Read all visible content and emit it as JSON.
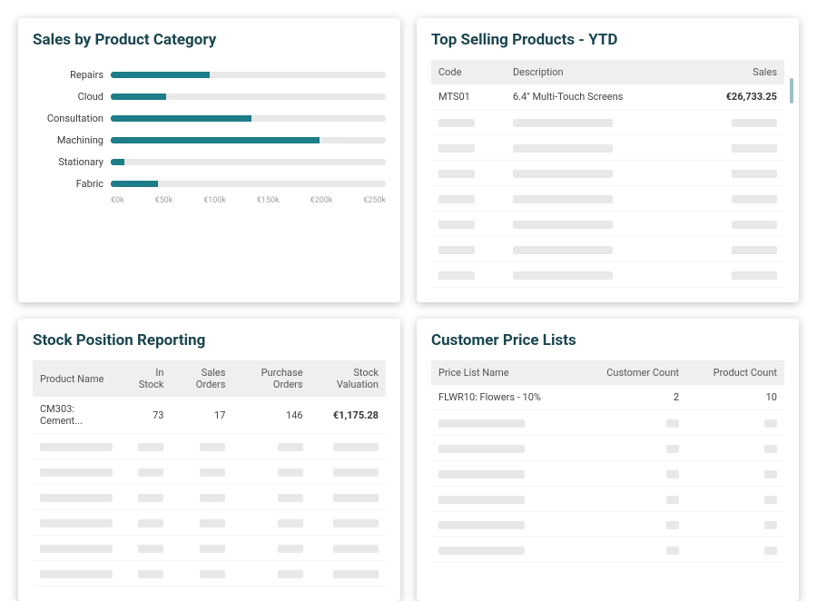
{
  "colors": {
    "title": "#1a4550",
    "bar_fill": "#1d7d89",
    "bar_track": "#e8e8e8",
    "skeleton": "#e8e8e8",
    "header_bg": "#efefef",
    "scroll": "#9dbfc4"
  },
  "chart_card": {
    "title": "Sales by Product Category",
    "type": "bar-horizontal",
    "max": 250,
    "categories": [
      "Repairs",
      "Cloud",
      "Consultation",
      "Machining",
      "Stationary",
      "Fabric"
    ],
    "values": [
      90,
      50,
      128,
      190,
      12,
      43
    ],
    "axis_ticks": [
      "€0k",
      "€50k",
      "€100k",
      "€150k",
      "€200k",
      "€250k"
    ],
    "bar_color": "#1d7d89",
    "track_color": "#e8e8e8",
    "label_fontsize": 11,
    "axis_fontsize": 9
  },
  "top_products": {
    "title": "Top Selling Products - YTD",
    "columns": [
      "Code",
      "Description",
      "Sales"
    ],
    "row": {
      "code": "MTS01",
      "description": "6.4\" Multi-Touch Screens",
      "sales": "€26,733.25"
    },
    "placeholder_rows": 7,
    "skeleton_widths": {
      "code": 40,
      "desc": 110,
      "sales": 50
    }
  },
  "stock": {
    "title": "Stock Position Reporting",
    "columns": [
      "Product Name",
      "In Stock",
      "Sales Orders",
      "Purchase Orders",
      "Stock Valuation"
    ],
    "row": {
      "name": "CM303: Cement...",
      "in_stock": "73",
      "sales_orders": "17",
      "purchase_orders": "146",
      "valuation": "€1,175.28"
    },
    "placeholder_rows": 6,
    "skeleton_widths": {
      "name": 80,
      "num": 28,
      "val": 50
    }
  },
  "price_lists": {
    "title": "Customer Price Lists",
    "columns": [
      "Price List Name",
      "Customer Count",
      "Product Count"
    ],
    "row": {
      "name": "FLWR10: Flowers - 10%",
      "customers": "2",
      "products": "10"
    },
    "placeholder_rows": 6,
    "skeleton_widths": {
      "name": 95,
      "num": 14
    }
  }
}
